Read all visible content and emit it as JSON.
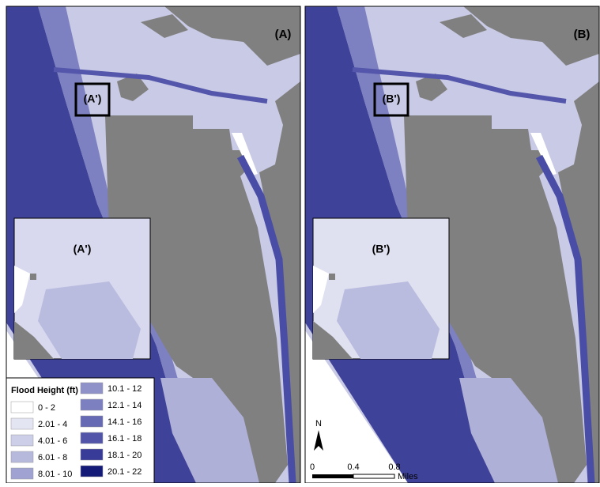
{
  "panels": [
    {
      "label": "(A)",
      "inset_label": "(A')"
    },
    {
      "label": "(B)",
      "inset_label": "(B')"
    }
  ],
  "legend": {
    "title": "Flood Height (ft)",
    "items": [
      {
        "label": "0 - 2",
        "color": "#ffffff"
      },
      {
        "label": "2.01 - 4",
        "color": "#e4e5f2"
      },
      {
        "label": "4.01 - 6",
        "color": "#cdcee7"
      },
      {
        "label": "6.01 - 8",
        "color": "#b6b8dc"
      },
      {
        "label": "8.01 - 10",
        "color": "#a0a3d1"
      },
      {
        "label": "10.1 - 12",
        "color": "#8f92c9"
      },
      {
        "label": "12.1 - 14",
        "color": "#7c7fc0"
      },
      {
        "label": "14.1 - 16",
        "color": "#6669b4"
      },
      {
        "label": "16.1 - 18",
        "color": "#5154a8"
      },
      {
        "label": "18.1 - 20",
        "color": "#383b97"
      },
      {
        "label": "20.1 - 22",
        "color": "#141a78"
      }
    ]
  },
  "north_arrow": "N",
  "scale_bar": {
    "ticks": [
      "0",
      "0.4",
      "0.8"
    ],
    "unit": "Miles"
  }
}
